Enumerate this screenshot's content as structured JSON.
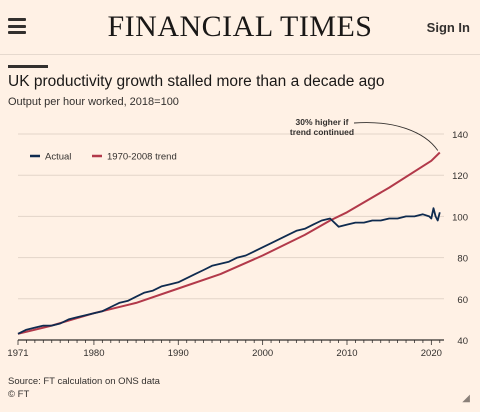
{
  "header": {
    "masthead": "FINANCIAL TIMES",
    "signin_label": "Sign In",
    "menu_icon": "hamburger-menu-icon"
  },
  "chart_data": {
    "type": "line",
    "title": "UK productivity growth stalled more than a decade ago",
    "subtitle": "Output per hour worked, 2018=100",
    "xlim": [
      1971,
      2021.5
    ],
    "ylim": [
      40,
      140
    ],
    "x_ticks": [
      1971,
      1980,
      1990,
      2000,
      2010,
      2020
    ],
    "y_ticks": [
      40,
      60,
      80,
      100,
      120,
      140
    ],
    "legend": {
      "placement": "top-left"
    },
    "annotation": "30% higher if trend continued",
    "series": [
      {
        "name": "Actual",
        "color": "#0f2b4f",
        "x": [
          1971,
          1972,
          1973,
          1974,
          1975,
          1976,
          1977,
          1978,
          1979,
          1980,
          1981,
          1982,
          1983,
          1984,
          1985,
          1986,
          1987,
          1988,
          1989,
          1990,
          1991,
          1992,
          1993,
          1994,
          1995,
          1996,
          1997,
          1998,
          1999,
          2000,
          2001,
          2002,
          2003,
          2004,
          2005,
          2006,
          2007,
          2008,
          2009,
          2010,
          2011,
          2012,
          2013,
          2014,
          2015,
          2016,
          2017,
          2018,
          2019,
          2019.75,
          2020,
          2020.25,
          2020.5,
          2020.75,
          2021
        ],
        "values": [
          43,
          45,
          46,
          47,
          47,
          48,
          50,
          51,
          52,
          53,
          54,
          56,
          58,
          59,
          61,
          63,
          64,
          66,
          67,
          68,
          70,
          72,
          74,
          76,
          77,
          78,
          80,
          81,
          83,
          85,
          87,
          89,
          91,
          93,
          94,
          96,
          98,
          99,
          95,
          96,
          97,
          97,
          98,
          98,
          99,
          99,
          100,
          100,
          101,
          100,
          99,
          104,
          100,
          98,
          102
        ]
      },
      {
        "name": "1970-2008 trend",
        "color": "#b2394a",
        "x": [
          1971,
          1975,
          1980,
          1985,
          1990,
          1995,
          2000,
          2005,
          2008,
          2010,
          2015,
          2020,
          2021
        ],
        "values": [
          43,
          47,
          53,
          58,
          65,
          72,
          81,
          91,
          98,
          102,
          114,
          127,
          131
        ]
      }
    ]
  },
  "source": {
    "line1": "Source: FT calculation on ONS data",
    "line2": "© FT"
  },
  "colors": {
    "background": "#fff1e5",
    "text": "#33302e",
    "grid": "#e3d5c9"
  }
}
